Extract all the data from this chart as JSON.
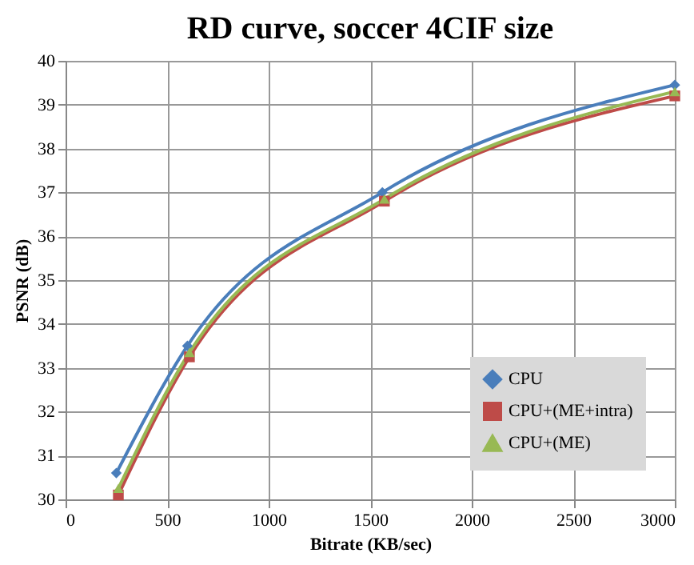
{
  "chart_data": {
    "type": "line",
    "title": "RD curve, soccer 4CIF size",
    "xlabel": "Bitrate (KB/sec)",
    "ylabel": "PSNR (dB)",
    "xlim": [
      0,
      3000
    ],
    "xticks": [
      0,
      500,
      1000,
      1500,
      2000,
      2500,
      3000
    ],
    "ylim": [
      30,
      40
    ],
    "yticks": [
      30,
      31,
      32,
      33,
      34,
      35,
      36,
      37,
      38,
      39,
      40
    ],
    "grid": true,
    "legend": "bottom right",
    "series": [
      {
        "name": "CPU",
        "color": "#4a7ebb",
        "marker": "diamond",
        "x": [
          250,
          600,
          1560,
          3000
        ],
        "values": [
          30.6,
          33.5,
          37.0,
          39.45
        ]
      },
      {
        "name": "CPU+(ME+intra)",
        "color": "#be4b48",
        "marker": "square",
        "x": [
          260,
          610,
          1570,
          3000
        ],
        "values": [
          30.1,
          33.25,
          36.8,
          39.2
        ]
      },
      {
        "name": "CPU+(ME)",
        "color": "#98b954",
        "marker": "triangle",
        "x": [
          260,
          610,
          1570,
          3000
        ],
        "values": [
          30.25,
          33.35,
          36.85,
          39.3
        ]
      }
    ]
  }
}
